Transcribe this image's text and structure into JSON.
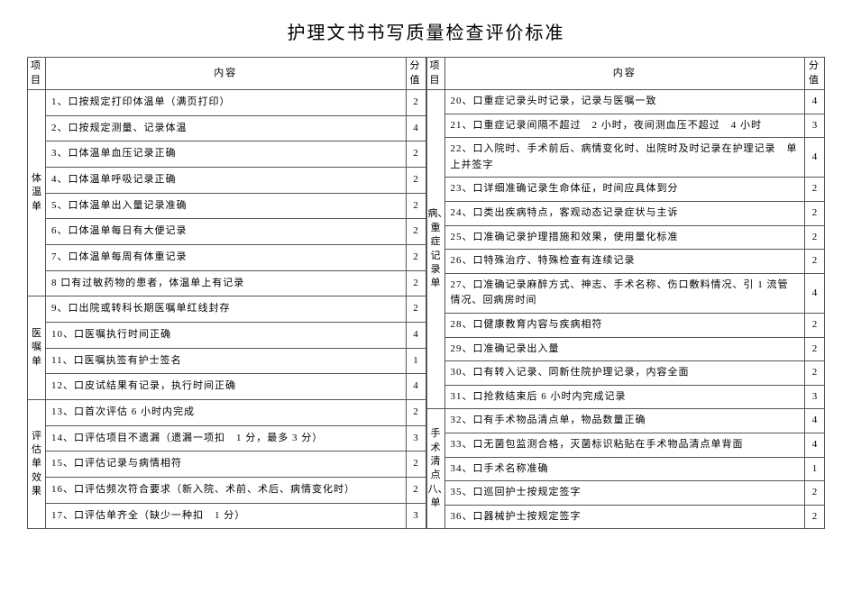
{
  "title": "护理文书书写质量检查评价标准",
  "headers": {
    "category": "项目",
    "content": "内容",
    "score": "分值"
  },
  "left": {
    "groups": [
      {
        "label": "体温单",
        "rows": [
          {
            "text": "1、口按规定打印体温单（满页打印）",
            "score": "2"
          },
          {
            "text": "2、口按规定测量、记录体温",
            "score": "4"
          },
          {
            "text": "3、口体温单血压记录正确",
            "score": "2"
          },
          {
            "text": "4、口体温单呼吸记录正确",
            "score": "2"
          },
          {
            "text": "5、口体温单出入量记录准确",
            "score": "2"
          },
          {
            "text": "6、口体温单每日有大便记录",
            "score": "2"
          },
          {
            "text": "7、口体温单每周有体重记录",
            "score": "2"
          },
          {
            "text": "8 口有过敏药物的患者，体温单上有记录",
            "score": "2"
          }
        ]
      },
      {
        "label": "医嘱单",
        "rows": [
          {
            "text": "9、口出院或转科长期医嘱单红线封存",
            "score": "2"
          },
          {
            "text": "10、口医嘱执行时间正确",
            "score": "4"
          },
          {
            "text": "11、口医嘱执签有护士签名",
            "score": "1"
          },
          {
            "text": "12、口皮试结果有记录，执行时间正确",
            "score": "4"
          }
        ]
      },
      {
        "label": "评估单效果",
        "rows": [
          {
            "text": "13、口首次评估 6 小时内完成",
            "score": "2"
          },
          {
            "text": "14、口评估项目不遗漏（遗漏一项扣　1 分，最多 3 分）",
            "score": "3"
          },
          {
            "text": "15、口评估记录与病情相符",
            "score": "2"
          },
          {
            "text": "16、口评估频次符合要求（新入院、术前、术后、病情变化时）",
            "score": "2"
          },
          {
            "text": "17、口评估单齐全（缺少一种扣　1 分）",
            "score": "3"
          }
        ]
      }
    ]
  },
  "right": {
    "groups": [
      {
        "label": "病、重症记录单",
        "rows": [
          {
            "text": "20、口重症记录头时记录，记录与医嘱一致",
            "score": "4"
          },
          {
            "text": "21、口重症记录间隔不超过　2 小时，夜间测血压不超过　4 小时",
            "score": "3"
          },
          {
            "text": "22、口入院时、手术前后、病情变化时、出院时及时记录在护理记录　单上并签字",
            "score": "4"
          },
          {
            "text": "23、口详细准确记录生命体征，时间应具体到分",
            "score": "2"
          },
          {
            "text": "24、口类出疾病特点，客观动态记录症状与主诉",
            "score": "2"
          },
          {
            "text": "25、口准确记录护理措施和效果，使用量化标准",
            "score": "2"
          },
          {
            "text": "26、口特殊治疗、特殊检查有连续记录",
            "score": "2"
          },
          {
            "text": "27、口准确记录麻醉方式、神志、手术名称、伤口敷料情况、引 1 流管　情况、回病房时间",
            "score": "4"
          },
          {
            "text": "28、口健康教育内容与疾病相符",
            "score": "2"
          },
          {
            "text": "29、口准确记录出入量",
            "score": "2"
          },
          {
            "text": "30、口有转入记录、同新住院护理记录，内容全面",
            "score": "2"
          },
          {
            "text": "31、口抢救结束后 6 小时内完成记录",
            "score": "3"
          }
        ]
      },
      {
        "label": "手术清点八、单",
        "rows": [
          {
            "text": "32、口有手术物品清点单，物品数量正确",
            "score": "4"
          },
          {
            "text": "33、口无菌包监测合格，灭菌标识粘贴在手术物品清点单背面",
            "score": "4"
          },
          {
            "text": "34、口手术名称准确",
            "score": "1"
          },
          {
            "text": "35、口巡回护士按规定签字",
            "score": "2"
          },
          {
            "text": "36、口器械护士按规定签字",
            "score": "2"
          }
        ]
      }
    ]
  }
}
